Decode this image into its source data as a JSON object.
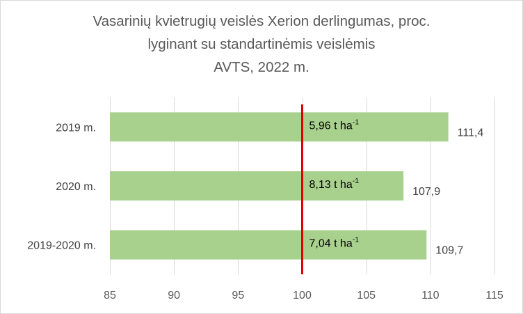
{
  "chart_data": {
    "type": "bar",
    "orientation": "horizontal",
    "title_lines": [
      "Vasarinių kvietrugių veislės Xerion derlingumas, proc.",
      "lyginant su standartinėmis veislėmis",
      "AVTS, 2022 m."
    ],
    "categories": [
      "2019 m.",
      "2020 m.",
      "2019-2020 m."
    ],
    "values": [
      111.4,
      107.9,
      109.7
    ],
    "value_labels": [
      "111,4",
      "107,9",
      "109,7"
    ],
    "inbar_labels": [
      {
        "text": "5,96 t ha",
        "sup": "-1"
      },
      {
        "text": "8,13 t ha",
        "sup": "-1"
      },
      {
        "text": "7,04 t ha",
        "sup": "-1"
      }
    ],
    "xlim": [
      85,
      115
    ],
    "xticks": [
      85,
      90,
      95,
      100,
      105,
      110,
      115
    ],
    "reference_line": 100,
    "grid": "vertical",
    "bar_color": "#a9d18e",
    "reference_line_color": "#e00000",
    "grid_color": "#d9d9d9",
    "legend": "none"
  }
}
